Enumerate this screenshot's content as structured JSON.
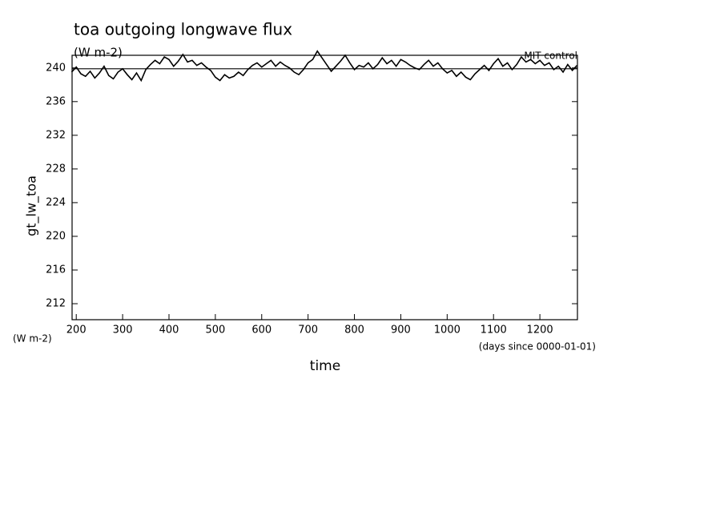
{
  "chart_data": {
    "type": "line",
    "title": "toa outgoing longwave flux",
    "subtitle": "(W m-2)",
    "y_label": "gt_lw_toa",
    "x_label": "time",
    "x_units": "(days since 0000-01-01)",
    "y_units": "(W m-2)",
    "xlim": [
      191,
      1281
    ],
    "ylim": [
      210.1,
      241.5
    ],
    "xticks": [
      200,
      300,
      400,
      500,
      600,
      700,
      800,
      900,
      1000,
      1100,
      1200
    ],
    "yticks": [
      212,
      216,
      220,
      224,
      228,
      232,
      236,
      240
    ],
    "reference_line": 239.9,
    "x": [
      190,
      200,
      210,
      220,
      230,
      240,
      250,
      260,
      270,
      280,
      290,
      300,
      310,
      320,
      330,
      340,
      350,
      360,
      370,
      380,
      390,
      400,
      410,
      420,
      430,
      440,
      450,
      460,
      470,
      480,
      490,
      500,
      510,
      520,
      530,
      540,
      550,
      560,
      570,
      580,
      590,
      600,
      610,
      620,
      630,
      640,
      650,
      660,
      670,
      680,
      690,
      700,
      710,
      720,
      730,
      740,
      750,
      760,
      770,
      780,
      790,
      800,
      810,
      820,
      830,
      840,
      850,
      860,
      870,
      880,
      890,
      900,
      910,
      920,
      930,
      940,
      950,
      960,
      970,
      980,
      990,
      1000,
      1010,
      1020,
      1030,
      1040,
      1050,
      1060,
      1070,
      1080,
      1090,
      1100,
      1110,
      1120,
      1130,
      1140,
      1150,
      1160,
      1170,
      1180,
      1190,
      1200,
      1210,
      1220,
      1230,
      1240,
      1250,
      1260,
      1270,
      1280
    ],
    "series": [
      {
        "name": "MIT control",
        "color": "#000000",
        "values": [
          239.5,
          240.1,
          239.3,
          239.0,
          239.6,
          238.8,
          239.4,
          240.2,
          239.1,
          238.7,
          239.5,
          239.9,
          239.2,
          238.6,
          239.4,
          238.5,
          239.8,
          240.4,
          240.9,
          240.5,
          241.3,
          241.0,
          240.2,
          240.8,
          241.6,
          240.7,
          240.9,
          240.3,
          240.6,
          240.1,
          239.7,
          238.9,
          238.5,
          239.2,
          238.8,
          239.0,
          239.5,
          239.1,
          239.8,
          240.3,
          240.6,
          240.1,
          240.5,
          240.9,
          240.2,
          240.7,
          240.3,
          240.0,
          239.5,
          239.2,
          239.8,
          240.6,
          241.0,
          242.0,
          241.2,
          240.4,
          239.6,
          240.2,
          240.8,
          241.5,
          240.6,
          239.8,
          240.3,
          240.1,
          240.6,
          239.9,
          240.4,
          241.2,
          240.5,
          240.9,
          240.2,
          241.0,
          240.7,
          240.3,
          240.0,
          239.8,
          240.4,
          240.9,
          240.2,
          240.6,
          239.9,
          239.4,
          239.7,
          239.0,
          239.5,
          238.9,
          238.6,
          239.3,
          239.8,
          240.3,
          239.7,
          240.5,
          241.1,
          240.2,
          240.6,
          239.8,
          240.4,
          241.3,
          240.7,
          241.0,
          240.5,
          240.9,
          240.3,
          240.6,
          239.8,
          240.2,
          239.5,
          240.4,
          239.7,
          240.3
        ]
      }
    ]
  }
}
